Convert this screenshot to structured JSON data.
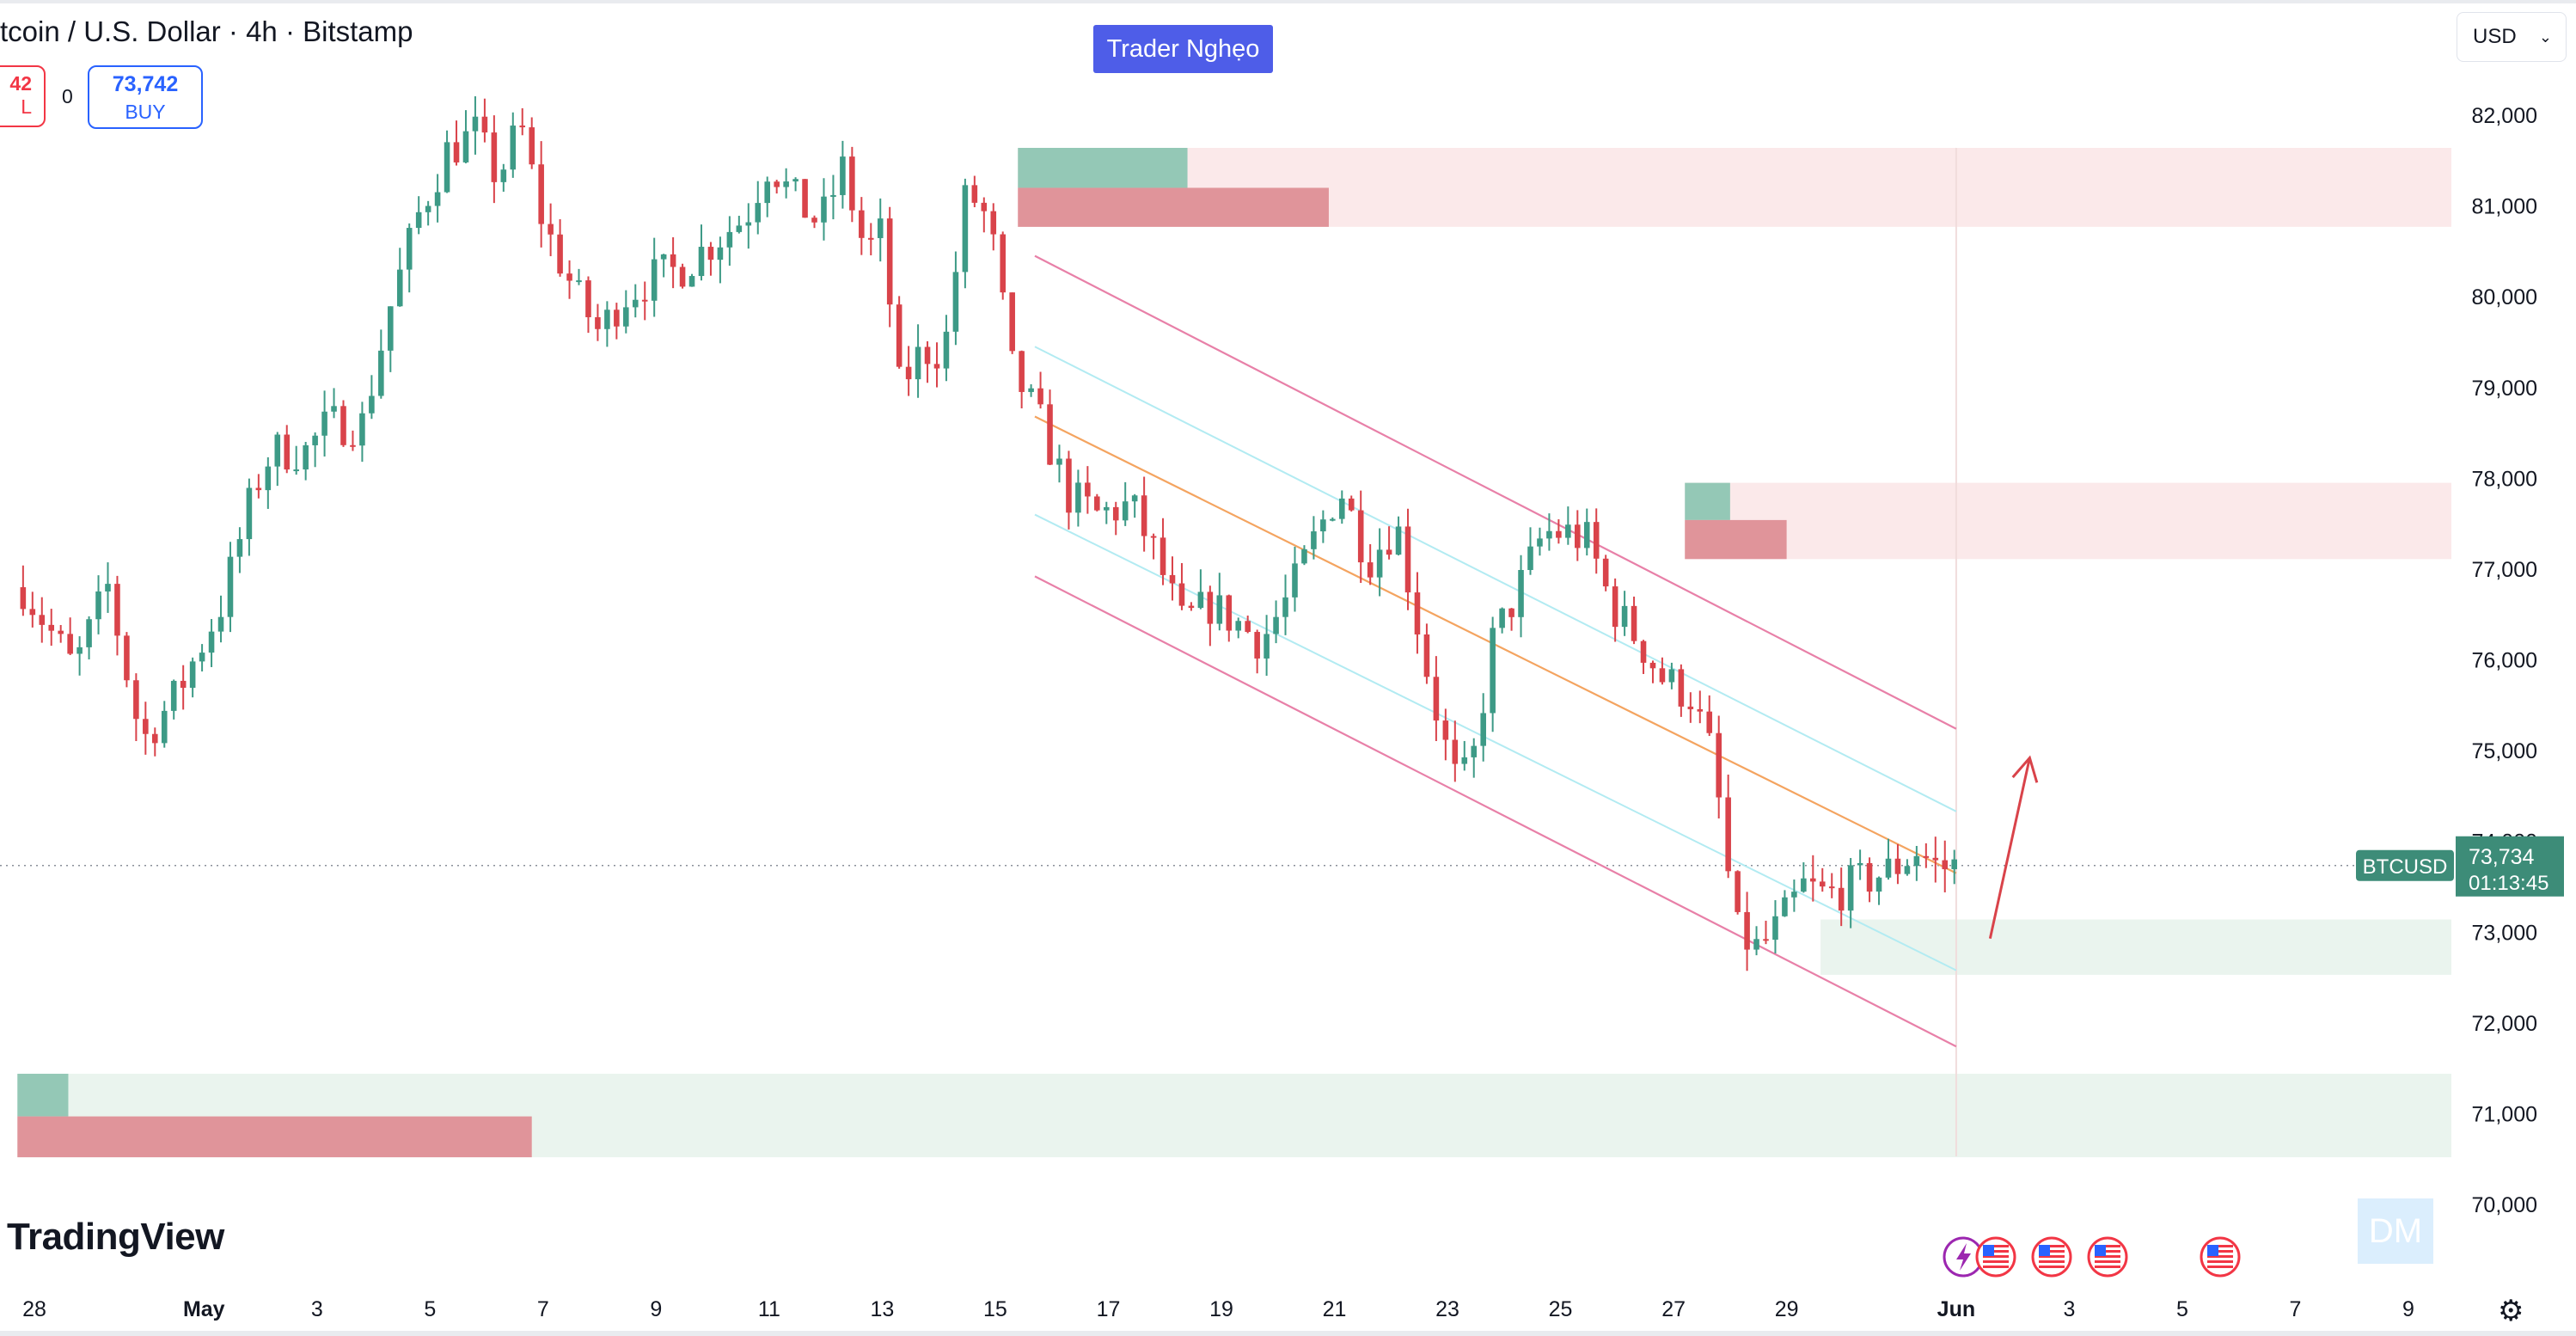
{
  "header": {
    "title": "tcoin / U.S. Dollar · 4h · Bitstamp",
    "sell_price": "42",
    "sell_label": "L",
    "spread": "0",
    "buy_price": "73,742",
    "buy_label": "BUY"
  },
  "watermark_tag": "Trader Nghẹo",
  "currency": "USD",
  "logo": "TradingView",
  "dm_badge": "DM",
  "colors": {
    "up": "#26a69a",
    "down": "#f23645",
    "bull_candle": "#3d9a86",
    "bear_candle": "#d9434a",
    "channel_outer": "#e880a8",
    "channel_mid": "#f4a460",
    "channel_inner": "#b2ebf2",
    "zone_pink": "#fbe9ea",
    "zone_green": "#eaf4ee",
    "zone_green_bar": "#94c8b6",
    "zone_red_bar": "#e0949a",
    "arrow": "#d9434a",
    "last_price_bg": "#3d8c78"
  },
  "chart_data": {
    "type": "candlestick",
    "symbol": "BTCUSD",
    "interval": "4h",
    "exchange": "Bitstamp",
    "y_axis": {
      "range": [
        69700,
        82600
      ],
      "ticks": [
        "82,000",
        "81,000",
        "80,000",
        "79,000",
        "78,000",
        "77,000",
        "76,000",
        "75,000",
        "74,000",
        "73,000",
        "72,000",
        "71,000",
        "70,000"
      ],
      "tick_values": [
        82000,
        81000,
        80000,
        79000,
        78000,
        77000,
        76000,
        75000,
        74000,
        73000,
        72000,
        71000,
        70000
      ]
    },
    "x_axis": {
      "range_days": [
        -3.3,
        40.1
      ],
      "ticks": [
        {
          "label": "28",
          "day": -3
        },
        {
          "label": "May",
          "day": 0
        },
        {
          "label": "3",
          "day": 2
        },
        {
          "label": "5",
          "day": 4
        },
        {
          "label": "7",
          "day": 6
        },
        {
          "label": "9",
          "day": 8
        },
        {
          "label": "11",
          "day": 10
        },
        {
          "label": "13",
          "day": 12
        },
        {
          "label": "15",
          "day": 14
        },
        {
          "label": "17",
          "day": 16
        },
        {
          "label": "19",
          "day": 18
        },
        {
          "label": "21",
          "day": 20
        },
        {
          "label": "23",
          "day": 22
        },
        {
          "label": "25",
          "day": 24
        },
        {
          "label": "27",
          "day": 26
        },
        {
          "label": "29",
          "day": 28
        },
        {
          "label": "Jun",
          "day": 31
        },
        {
          "label": "3",
          "day": 33
        },
        {
          "label": "5",
          "day": 35
        },
        {
          "label": "7",
          "day": 37
        },
        {
          "label": "9",
          "day": 39
        }
      ]
    },
    "last_price": {
      "label": "BTCUSD",
      "value": "73,734",
      "countdown": "01:13:45",
      "price": 73734
    },
    "path_points": [
      [
        -3.2,
        76800
      ],
      [
        -2.8,
        76400
      ],
      [
        -2.3,
        75900
      ],
      [
        -1.7,
        76800
      ],
      [
        -1.1,
        75100
      ],
      [
        -0.5,
        75600
      ],
      [
        0.3,
        76600
      ],
      [
        0.9,
        77900
      ],
      [
        1.2,
        78300
      ],
      [
        1.8,
        78300
      ],
      [
        2.2,
        78600
      ],
      [
        2.8,
        78600
      ],
      [
        3.3,
        79900
      ],
      [
        3.8,
        80900
      ],
      [
        4.3,
        81600
      ],
      [
        4.8,
        81800
      ],
      [
        5.2,
        81300
      ],
      [
        5.6,
        81900
      ],
      [
        6.0,
        80800
      ],
      [
        6.6,
        80000
      ],
      [
        7.0,
        79600
      ],
      [
        7.4,
        80000
      ],
      [
        7.9,
        80200
      ],
      [
        8.4,
        80300
      ],
      [
        9.0,
        80600
      ],
      [
        9.6,
        80900
      ],
      [
        10.0,
        81500
      ],
      [
        10.4,
        81100
      ],
      [
        10.9,
        80800
      ],
      [
        11.3,
        81400
      ],
      [
        11.7,
        80500
      ],
      [
        12.0,
        80700
      ],
      [
        12.3,
        79000
      ],
      [
        12.7,
        79400
      ],
      [
        13.1,
        79400
      ],
      [
        13.5,
        81200
      ],
      [
        13.9,
        80800
      ],
      [
        14.3,
        79200
      ],
      [
        14.8,
        78600
      ],
      [
        15.3,
        77800
      ],
      [
        15.8,
        77600
      ],
      [
        16.4,
        77700
      ],
      [
        16.8,
        77200
      ],
      [
        17.3,
        76400
      ],
      [
        17.8,
        76600
      ],
      [
        18.3,
        76400
      ],
      [
        18.7,
        76200
      ],
      [
        19.2,
        76700
      ],
      [
        19.7,
        77400
      ],
      [
        20.1,
        77900
      ],
      [
        20.6,
        77100
      ],
      [
        21.1,
        77500
      ],
      [
        21.7,
        75700
      ],
      [
        22.1,
        74700
      ],
      [
        22.4,
        74700
      ],
      [
        22.8,
        76200
      ],
      [
        23.2,
        76700
      ],
      [
        23.7,
        77400
      ],
      [
        24.1,
        77400
      ],
      [
        24.5,
        77300
      ],
      [
        24.9,
        76600
      ],
      [
        25.4,
        76200
      ],
      [
        25.8,
        75800
      ],
      [
        26.3,
        75600
      ],
      [
        26.7,
        74900
      ],
      [
        27.1,
        73000
      ],
      [
        27.5,
        72800
      ],
      [
        27.9,
        73100
      ],
      [
        28.3,
        73500
      ],
      [
        28.7,
        73400
      ],
      [
        29.1,
        73500
      ],
      [
        29.5,
        73600
      ],
      [
        29.9,
        73700
      ],
      [
        30.3,
        73900
      ],
      [
        30.7,
        73700
      ],
      [
        31.0,
        73734
      ]
    ],
    "channel": {
      "start_day": 14.7,
      "end_day": 31.0,
      "upper": [
        80450,
        75240
      ],
      "upper_inner": [
        79450,
        74330
      ],
      "mid": [
        78680,
        73650
      ],
      "lower_inner": [
        77600,
        72580
      ],
      "lower": [
        76920,
        71740
      ]
    },
    "zones": [
      {
        "kind": "supply",
        "low": 80770,
        "high": 81640,
        "from_day": 14.4,
        "green_to_day": 17.4,
        "red_low": 80770,
        "red_high": 81200,
        "red_to_day": 19.9
      },
      {
        "kind": "supply",
        "low": 77110,
        "high": 77950,
        "from_day": 26.2,
        "green_to_day": 27.0,
        "red_low": 77110,
        "red_high": 77540,
        "red_to_day": 28.0
      },
      {
        "kind": "demand",
        "low": 72530,
        "high": 73140,
        "from_day": 28.6
      },
      {
        "kind": "demand",
        "low": 70520,
        "high": 71440,
        "from_day": -3.3,
        "green_to_day": -2.4,
        "red_low": 70520,
        "red_high": 70970,
        "red_to_day": 5.8
      }
    ],
    "arrow": {
      "from": [
        31.6,
        72930
      ],
      "to": [
        32.3,
        74920
      ]
    },
    "seed": 7
  }
}
